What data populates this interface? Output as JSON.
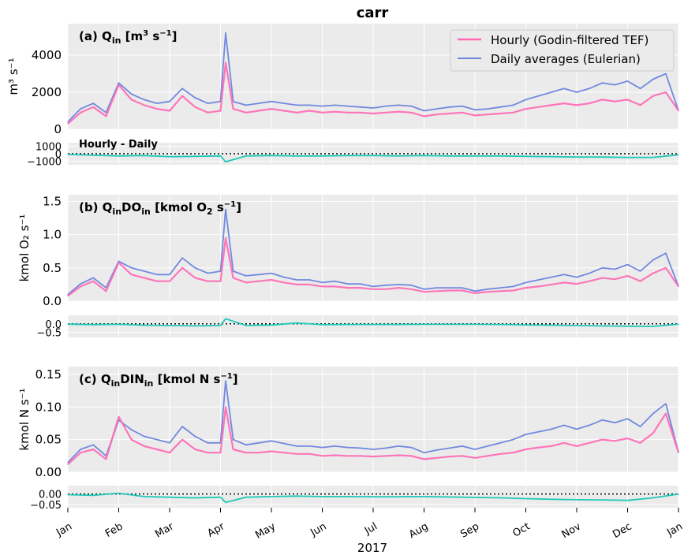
{
  "figure": {
    "title": "carr",
    "xlabel": "2017",
    "months": [
      "Jan",
      "Feb",
      "Mar",
      "Apr",
      "May",
      "Jun",
      "Jul",
      "Aug",
      "Sep",
      "Oct",
      "Nov",
      "Dec",
      "Jan"
    ],
    "legend": {
      "hourly": "Hourly (Godin-filtered TEF)",
      "daily": "Daily averages (Eulerian)"
    },
    "diff_label": "Hourly - Daily"
  },
  "colors": {
    "hourly": "#ff69b4",
    "daily": "#6b84de",
    "diff": "#20c9b8",
    "panel_bg": "#ebebeb",
    "grid": "#ffffff"
  },
  "chart_data": [
    {
      "type": "line",
      "panel": "a",
      "title_html": "(a) Q<tspan font-size='11' dy='4'>in</tspan><tspan dy='-4'> [m</tspan><tspan font-size='10' dy='-6'>3</tspan><tspan dy='6'> s</tspan><tspan font-size='10' dy='-6'>−1</tspan><tspan dy='6'>]</tspan>",
      "ylabel": "m³ s⁻¹",
      "ylim": [
        0,
        5700
      ],
      "yticks": [
        "0",
        "2000",
        "4000"
      ],
      "ytick_values": [
        0,
        2000,
        4000
      ],
      "series": [
        {
          "name": "Hourly (Godin-filtered TEF)",
          "key": "hourly",
          "x_month": [
            0,
            0.25,
            0.5,
            0.75,
            1,
            1.25,
            1.5,
            1.75,
            2,
            2.25,
            2.5,
            2.75,
            3,
            3.1,
            3.25,
            3.5,
            3.75,
            4,
            4.25,
            4.5,
            4.75,
            5,
            5.25,
            5.5,
            5.75,
            6,
            6.25,
            6.5,
            6.75,
            7,
            7.25,
            7.5,
            7.75,
            8,
            8.25,
            8.5,
            8.75,
            9,
            9.25,
            9.5,
            9.75,
            10,
            10.25,
            10.5,
            10.75,
            11,
            11.25,
            11.5,
            11.75,
            12
          ],
          "values": [
            300,
            900,
            1200,
            700,
            2400,
            1600,
            1300,
            1100,
            1000,
            1800,
            1200,
            900,
            1000,
            3600,
            1100,
            900,
            1000,
            1100,
            1000,
            900,
            1000,
            900,
            950,
            900,
            900,
            850,
            900,
            950,
            900,
            700,
            800,
            850,
            900,
            750,
            800,
            850,
            900,
            1100,
            1200,
            1300,
            1400,
            1300,
            1400,
            1600,
            1500,
            1600,
            1300,
            1800,
            2000,
            1000
          ]
        },
        {
          "name": "Daily averages (Eulerian)",
          "key": "daily",
          "x_month": [
            0,
            0.25,
            0.5,
            0.75,
            1,
            1.25,
            1.5,
            1.75,
            2,
            2.25,
            2.5,
            2.75,
            3,
            3.1,
            3.25,
            3.5,
            3.75,
            4,
            4.25,
            4.5,
            4.75,
            5,
            5.25,
            5.5,
            5.75,
            6,
            6.25,
            6.5,
            6.75,
            7,
            7.25,
            7.5,
            7.75,
            8,
            8.25,
            8.5,
            8.75,
            9,
            9.25,
            9.5,
            9.75,
            10,
            10.25,
            10.5,
            10.75,
            11,
            11.25,
            11.5,
            11.75,
            12
          ],
          "values": [
            400,
            1100,
            1400,
            900,
            2500,
            1900,
            1600,
            1400,
            1500,
            2200,
            1700,
            1400,
            1500,
            5200,
            1500,
            1300,
            1400,
            1500,
            1400,
            1300,
            1300,
            1250,
            1300,
            1250,
            1200,
            1150,
            1250,
            1300,
            1250,
            1000,
            1100,
            1200,
            1250,
            1050,
            1100,
            1200,
            1300,
            1600,
            1800,
            2000,
            2200,
            2000,
            2200,
            2500,
            2400,
            2600,
            2200,
            2700,
            3000,
            1000
          ]
        }
      ],
      "diff": {
        "ylim": [
          -1500,
          1500
        ],
        "yticks": [
          "1000",
          "0",
          "−1000"
        ],
        "ytick_values": [
          1000,
          0,
          -1000
        ],
        "x_month": [
          0,
          0.5,
          1,
          1.5,
          2,
          2.5,
          3,
          3.1,
          3.5,
          4,
          4.5,
          5,
          5.5,
          6,
          6.5,
          7,
          7.5,
          8,
          8.5,
          9,
          9.5,
          10,
          10.5,
          11,
          11.5,
          12
        ],
        "values": [
          -100,
          -200,
          -300,
          -250,
          -400,
          -350,
          -300,
          -1100,
          -300,
          -250,
          -300,
          -300,
          -250,
          -250,
          -300,
          -250,
          -300,
          -300,
          -300,
          -350,
          -400,
          -450,
          -450,
          -500,
          -500,
          -150
        ]
      }
    },
    {
      "type": "line",
      "panel": "b",
      "title_html": "(b) Q<tspan font-size='11' dy='4'>in</tspan><tspan dy='-4'>DO</tspan><tspan font-size='11' dy='4'>in</tspan><tspan dy='-4'> [kmol O</tspan><tspan font-size='11' dy='4'>2</tspan><tspan dy='-4'> s</tspan><tspan font-size='10' dy='-6'>−1</tspan><tspan dy='6'>]</tspan>",
      "ylabel": "kmol O₂ s⁻¹",
      "ylim": [
        0,
        1.6
      ],
      "yticks": [
        "0.0",
        "0.5",
        "1.0",
        "1.5"
      ],
      "ytick_values": [
        0,
        0.5,
        1.0,
        1.5
      ],
      "series": [
        {
          "name": "Hourly (Godin-filtered TEF)",
          "key": "hourly",
          "x_month": [
            0,
            0.25,
            0.5,
            0.75,
            1,
            1.25,
            1.5,
            1.75,
            2,
            2.25,
            2.5,
            2.75,
            3,
            3.1,
            3.25,
            3.5,
            3.75,
            4,
            4.25,
            4.5,
            4.75,
            5,
            5.25,
            5.5,
            5.75,
            6,
            6.25,
            6.5,
            6.75,
            7,
            7.25,
            7.5,
            7.75,
            8,
            8.25,
            8.5,
            8.75,
            9,
            9.25,
            9.5,
            9.75,
            10,
            10.25,
            10.5,
            10.75,
            11,
            11.25,
            11.5,
            11.75,
            12
          ],
          "values": [
            0.08,
            0.22,
            0.3,
            0.15,
            0.58,
            0.4,
            0.35,
            0.3,
            0.3,
            0.5,
            0.35,
            0.3,
            0.3,
            0.95,
            0.35,
            0.28,
            0.3,
            0.32,
            0.28,
            0.25,
            0.25,
            0.22,
            0.22,
            0.2,
            0.2,
            0.18,
            0.18,
            0.2,
            0.18,
            0.14,
            0.15,
            0.16,
            0.16,
            0.12,
            0.14,
            0.15,
            0.16,
            0.2,
            0.22,
            0.25,
            0.28,
            0.26,
            0.3,
            0.35,
            0.33,
            0.38,
            0.3,
            0.42,
            0.5,
            0.22
          ]
        },
        {
          "name": "Daily averages (Eulerian)",
          "key": "daily",
          "x_month": [
            0,
            0.25,
            0.5,
            0.75,
            1,
            1.25,
            1.5,
            1.75,
            2,
            2.25,
            2.5,
            2.75,
            3,
            3.1,
            3.25,
            3.5,
            3.75,
            4,
            4.25,
            4.5,
            4.75,
            5,
            5.25,
            5.5,
            5.75,
            6,
            6.25,
            6.5,
            6.75,
            7,
            7.25,
            7.5,
            7.75,
            8,
            8.25,
            8.5,
            8.75,
            9,
            9.25,
            9.5,
            9.75,
            10,
            10.25,
            10.5,
            10.75,
            11,
            11.25,
            11.5,
            11.75,
            12
          ],
          "values": [
            0.1,
            0.26,
            0.35,
            0.2,
            0.6,
            0.5,
            0.45,
            0.4,
            0.4,
            0.65,
            0.5,
            0.42,
            0.45,
            1.38,
            0.45,
            0.38,
            0.4,
            0.42,
            0.36,
            0.32,
            0.32,
            0.28,
            0.3,
            0.26,
            0.26,
            0.22,
            0.24,
            0.25,
            0.24,
            0.18,
            0.2,
            0.2,
            0.2,
            0.15,
            0.18,
            0.2,
            0.22,
            0.28,
            0.32,
            0.36,
            0.4,
            0.36,
            0.42,
            0.5,
            0.48,
            0.55,
            0.45,
            0.62,
            0.72,
            0.22
          ]
        }
      ],
      "diff": {
        "ylim": [
          -0.8,
          0.5
        ],
        "yticks": [
          "0.0",
          "−0.5"
        ],
        "ytick_values": [
          0,
          -0.5
        ],
        "x_month": [
          0,
          0.5,
          1,
          1.5,
          2,
          2.5,
          3,
          3.1,
          3.5,
          4,
          4.5,
          5,
          5.5,
          6,
          6.5,
          7,
          7.5,
          8,
          8.5,
          9,
          9.5,
          10,
          10.5,
          11,
          11.5,
          12
        ],
        "values": [
          -0.02,
          -0.05,
          -0.03,
          -0.08,
          -0.1,
          -0.12,
          -0.1,
          0.3,
          -0.1,
          -0.07,
          0.05,
          -0.05,
          -0.04,
          -0.04,
          -0.04,
          -0.03,
          -0.03,
          -0.03,
          -0.04,
          -0.06,
          -0.08,
          -0.1,
          -0.12,
          -0.14,
          -0.15,
          -0.02
        ]
      }
    },
    {
      "type": "line",
      "panel": "c",
      "title_html": "(c) Q<tspan font-size='11' dy='4'>in</tspan><tspan dy='-4'>DIN</tspan><tspan font-size='11' dy='4'>in</tspan><tspan dy='-4'> [kmol N s</tspan><tspan font-size='10' dy='-6'>−1</tspan><tspan dy='6'>]</tspan>",
      "ylabel": "kmol N s⁻¹",
      "ylim": [
        0,
        0.162
      ],
      "yticks": [
        "0.00",
        "0.05",
        "0.10",
        "0.15"
      ],
      "ytick_values": [
        0,
        0.05,
        0.1,
        0.15
      ],
      "series": [
        {
          "name": "Hourly (Godin-filtered TEF)",
          "key": "hourly",
          "x_month": [
            0,
            0.25,
            0.5,
            0.75,
            1,
            1.25,
            1.5,
            1.75,
            2,
            2.25,
            2.5,
            2.75,
            3,
            3.1,
            3.25,
            3.5,
            3.75,
            4,
            4.25,
            4.5,
            4.75,
            5,
            5.25,
            5.5,
            5.75,
            6,
            6.25,
            6.5,
            6.75,
            7,
            7.25,
            7.5,
            7.75,
            8,
            8.25,
            8.5,
            8.75,
            9,
            9.25,
            9.5,
            9.75,
            10,
            10.25,
            10.5,
            10.75,
            11,
            11.25,
            11.5,
            11.75,
            12
          ],
          "values": [
            0.012,
            0.03,
            0.035,
            0.02,
            0.085,
            0.05,
            0.04,
            0.035,
            0.03,
            0.05,
            0.035,
            0.03,
            0.03,
            0.1,
            0.035,
            0.03,
            0.03,
            0.032,
            0.03,
            0.028,
            0.028,
            0.025,
            0.026,
            0.025,
            0.025,
            0.024,
            0.025,
            0.026,
            0.025,
            0.02,
            0.022,
            0.024,
            0.025,
            0.022,
            0.025,
            0.028,
            0.03,
            0.035,
            0.038,
            0.04,
            0.045,
            0.04,
            0.045,
            0.05,
            0.048,
            0.052,
            0.045,
            0.06,
            0.09,
            0.03
          ]
        },
        {
          "name": "Daily averages (Eulerian)",
          "key": "daily",
          "x_month": [
            0,
            0.25,
            0.5,
            0.75,
            1,
            1.25,
            1.5,
            1.75,
            2,
            2.25,
            2.5,
            2.75,
            3,
            3.1,
            3.25,
            3.5,
            3.75,
            4,
            4.25,
            4.5,
            4.75,
            5,
            5.25,
            5.5,
            5.75,
            6,
            6.25,
            6.5,
            6.75,
            7,
            7.25,
            7.5,
            7.75,
            8,
            8.25,
            8.5,
            8.75,
            9,
            9.25,
            9.5,
            9.75,
            10,
            10.25,
            10.5,
            10.75,
            11,
            11.25,
            11.5,
            11.75,
            12
          ],
          "values": [
            0.015,
            0.035,
            0.042,
            0.025,
            0.08,
            0.065,
            0.055,
            0.05,
            0.045,
            0.07,
            0.055,
            0.045,
            0.045,
            0.14,
            0.05,
            0.042,
            0.045,
            0.048,
            0.044,
            0.04,
            0.04,
            0.038,
            0.04,
            0.038,
            0.037,
            0.035,
            0.037,
            0.04,
            0.038,
            0.03,
            0.034,
            0.037,
            0.04,
            0.035,
            0.04,
            0.045,
            0.05,
            0.058,
            0.062,
            0.066,
            0.072,
            0.066,
            0.072,
            0.08,
            0.076,
            0.082,
            0.07,
            0.09,
            0.105,
            0.03
          ]
        }
      ],
      "diff": {
        "ylim": [
          -0.065,
          0.04
        ],
        "yticks": [
          "0.00",
          "−0.05"
        ],
        "ytick_values": [
          0,
          -0.05
        ],
        "x_month": [
          0,
          0.5,
          1,
          1.5,
          2,
          2.5,
          3,
          3.1,
          3.5,
          4,
          4.5,
          5,
          5.5,
          6,
          6.5,
          7,
          7.5,
          8,
          8.5,
          9,
          9.5,
          10,
          10.5,
          11,
          11.5,
          12
        ],
        "values": [
          -0.003,
          -0.006,
          0.004,
          -0.012,
          -0.015,
          -0.018,
          -0.015,
          -0.04,
          -0.015,
          -0.012,
          -0.01,
          -0.012,
          -0.012,
          -0.013,
          -0.013,
          -0.012,
          -0.014,
          -0.016,
          -0.018,
          -0.022,
          -0.025,
          -0.027,
          -0.028,
          -0.03,
          -0.018,
          0.0
        ]
      }
    }
  ]
}
